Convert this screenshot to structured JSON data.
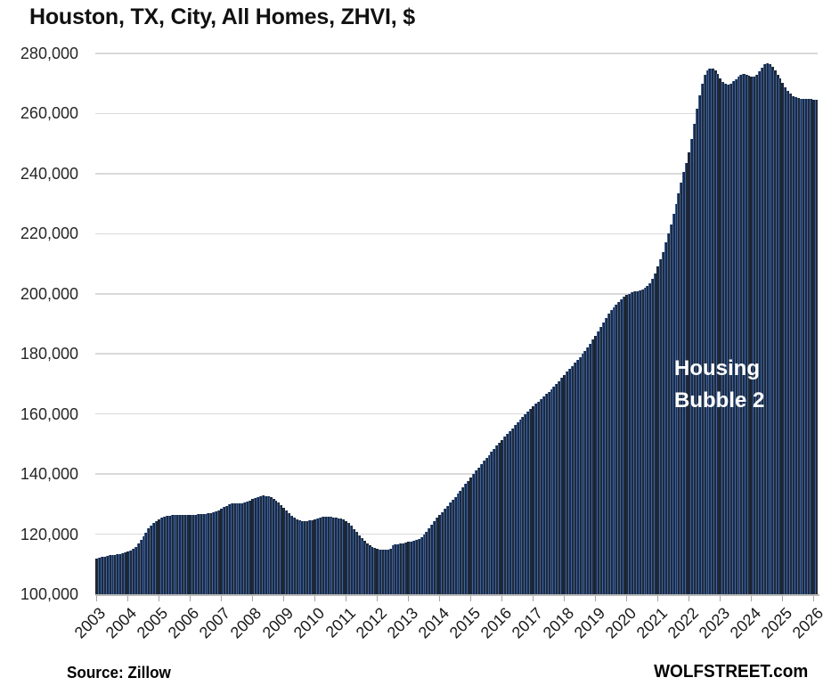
{
  "title": "Houston, TX, City, All Homes, ZHVI, $",
  "annotation": {
    "line1": "Housing",
    "line2": "Bubble 2"
  },
  "footer": {
    "source": "Source: Zillow",
    "brand": "WOLFSTREET.com"
  },
  "colors": {
    "bar_fill": "#1f2a3a",
    "bar_edge": "#3c64a6",
    "gridline": "#d9d9d9",
    "axis": "#b9b9b9",
    "text": "#262626",
    "annotation_text": "#ffffff",
    "background": "#ffffff"
  },
  "chart_data": {
    "type": "bar",
    "title": "Houston, TX, City, All Homes, ZHVI, $",
    "xlabel": "",
    "ylabel": "ZHVI, $",
    "ylim": [
      100000,
      280000
    ],
    "y_ticks": [
      280000,
      260000,
      240000,
      220000,
      200000,
      180000,
      160000,
      140000,
      120000,
      100000
    ],
    "x_tick_labels": [
      "2003",
      "2004",
      "2005",
      "2006",
      "2007",
      "2008",
      "2009",
      "2010",
      "2011",
      "2012",
      "2013",
      "2014",
      "2015",
      "2016",
      "2017",
      "2018",
      "2019",
      "2020",
      "2021",
      "2022",
      "2023",
      "2024",
      "2025",
      "2026"
    ],
    "x_start": "2003-01",
    "frequency": "monthly",
    "grid": true,
    "legend": false,
    "values": [
      112000,
      112200,
      112400,
      112600,
      112800,
      112900,
      113000,
      113100,
      113200,
      113400,
      113600,
      113800,
      114100,
      114500,
      115000,
      115800,
      116800,
      118000,
      119300,
      120600,
      121800,
      122800,
      123700,
      124400,
      125000,
      125400,
      125800,
      126000,
      126200,
      126300,
      126400,
      126400,
      126400,
      126400,
      126400,
      126400,
      126400,
      126500,
      126500,
      126600,
      126600,
      126700,
      126800,
      126900,
      127100,
      127300,
      127600,
      128000,
      128500,
      129000,
      129500,
      129900,
      130200,
      130300,
      130200,
      130100,
      130200,
      130400,
      130700,
      131100,
      131600,
      132000,
      132400,
      132600,
      132800,
      132700,
      132500,
      132200,
      131700,
      131100,
      130400,
      129600,
      128700,
      127800,
      126900,
      126100,
      125400,
      124900,
      124600,
      124400,
      124400,
      124400,
      124500,
      124700,
      124900,
      125200,
      125500,
      125700,
      125800,
      125800,
      125700,
      125600,
      125500,
      125300,
      125100,
      124800,
      124300,
      123600,
      122700,
      121700,
      120700,
      119700,
      118700,
      117800,
      117000,
      116300,
      115700,
      115300,
      115000,
      114800,
      114700,
      114700,
      114800,
      115000,
      116300,
      116500,
      116600,
      116800,
      117000,
      117200,
      117400,
      117500,
      117700,
      118000,
      118400,
      119000,
      119800,
      120800,
      121900,
      123100,
      124300,
      125400,
      126400,
      127400,
      128400,
      129400,
      130400,
      131400,
      132400,
      133400,
      134500,
      135600,
      136700,
      137800,
      138900,
      140000,
      141100,
      142200,
      143300,
      144400,
      145400,
      146400,
      147400,
      148400,
      149400,
      150400,
      151400,
      152400,
      153400,
      154400,
      155300,
      156200,
      157100,
      158000,
      158900,
      159800,
      160700,
      161600,
      162500,
      163400,
      164200,
      165000,
      165800,
      166600,
      167400,
      168300,
      169200,
      170100,
      171000,
      172000,
      173000,
      174000,
      175000,
      176000,
      177000,
      178000,
      179000,
      180000,
      181000,
      182200,
      183400,
      184700,
      186000,
      187500,
      189000,
      190500,
      192000,
      193300,
      194500,
      195500,
      196500,
      197400,
      198200,
      198900,
      199500,
      200000,
      200400,
      200700,
      200900,
      201100,
      201400,
      201900,
      202600,
      203600,
      205000,
      206800,
      209000,
      211500,
      214000,
      217000,
      220000,
      223000,
      226500,
      230000,
      233500,
      237000,
      240500,
      243500,
      247000,
      251500,
      256500,
      261500,
      266000,
      270000,
      272800,
      274300,
      275000,
      275000,
      274500,
      273300,
      271800,
      270500,
      269800,
      269700,
      270000,
      270800,
      271500,
      272200,
      272800,
      273100,
      273000,
      272600,
      272200,
      272300,
      273000,
      274200,
      275400,
      276300,
      276800,
      276500,
      275600,
      274400,
      273000,
      271600,
      270200,
      268800,
      267600,
      266600,
      265900,
      265400,
      265100,
      265000,
      264900,
      264900,
      264800,
      264800,
      264700,
      264600
    ]
  }
}
